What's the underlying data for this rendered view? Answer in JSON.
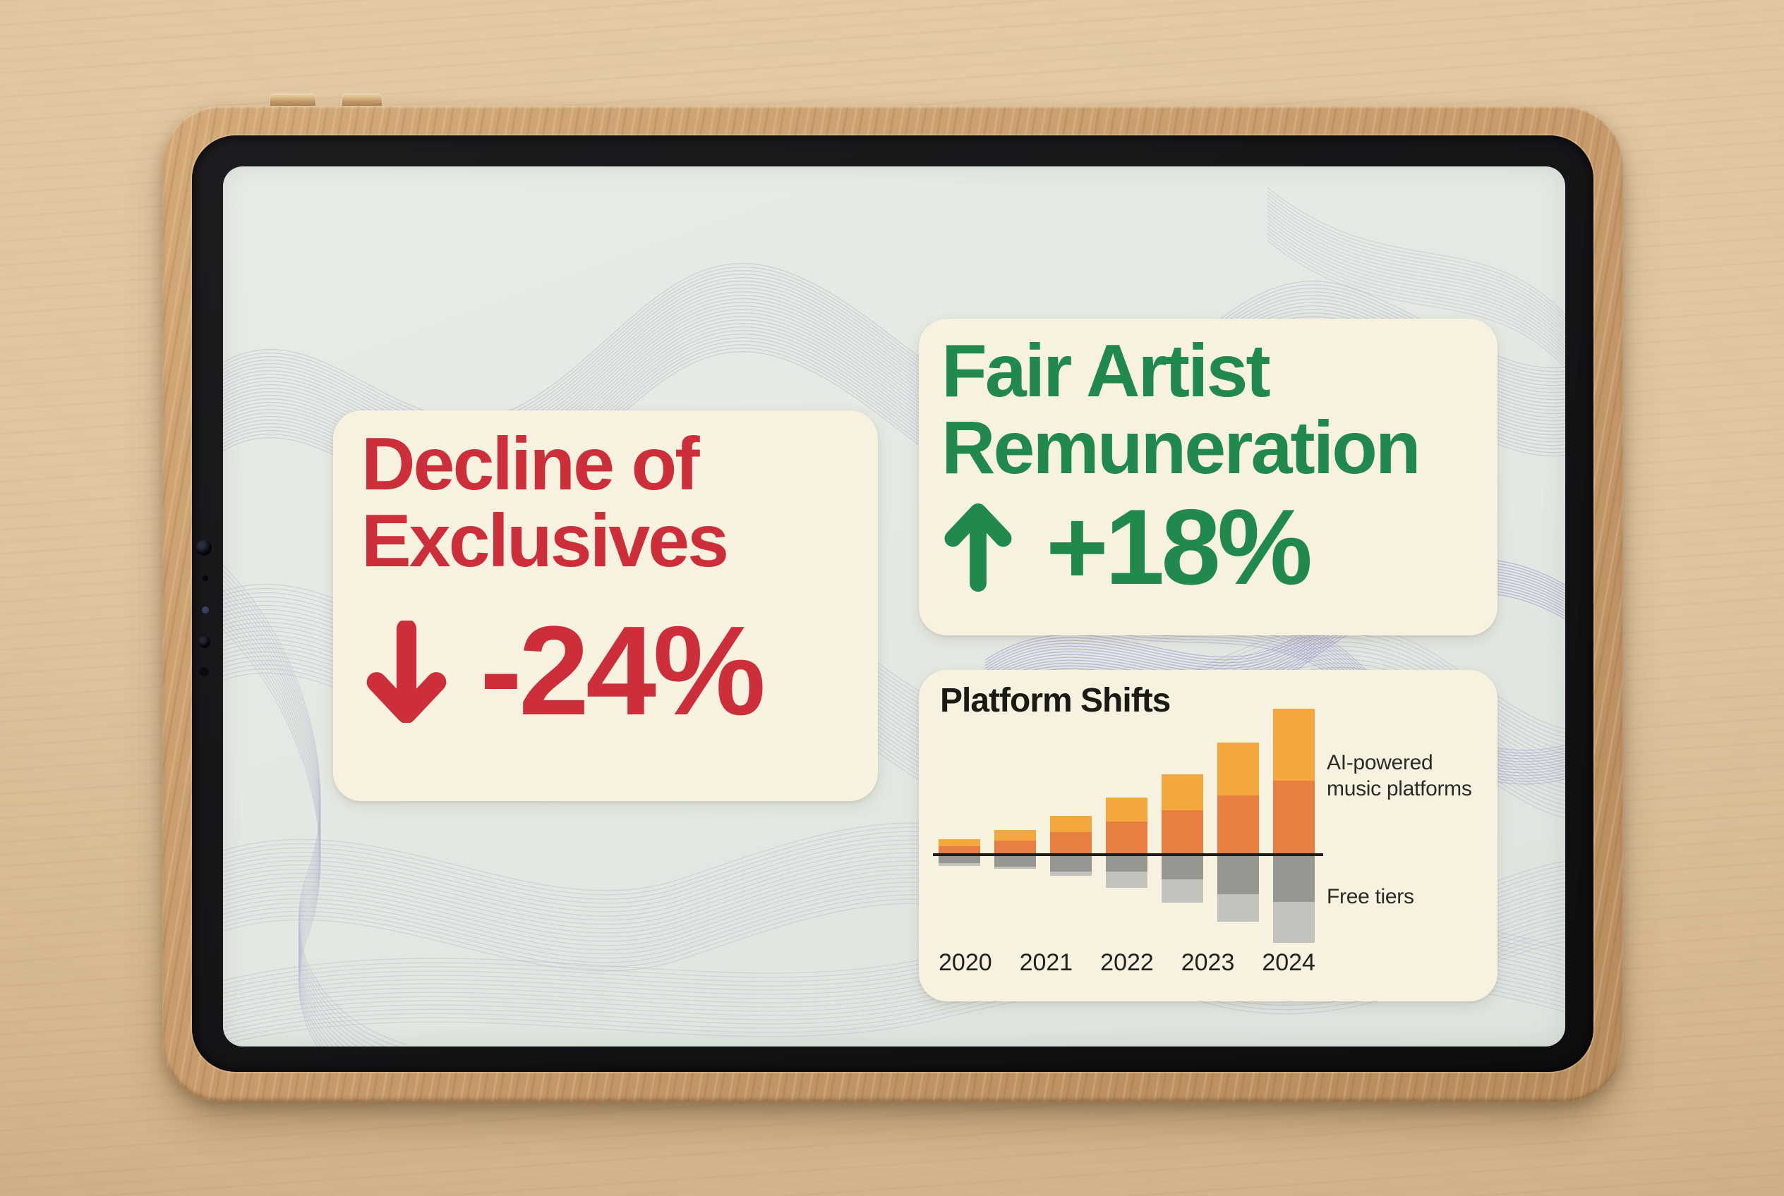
{
  "theme": {
    "desk_wood": "#DCC09A",
    "tablet_frame_wood": "#C89C6C",
    "bezel_black": "#141417",
    "screen_bg": "#E4E9E3",
    "card_bg": "#F7F2DF",
    "accent_red": "#CC2F3A",
    "accent_green": "#21894E",
    "wave_line": "#8E8BB8",
    "wave_accent": "#8476C6",
    "chart_text": "#1B1B15"
  },
  "icons": {
    "decline_arrow": "down-arrow-icon",
    "growth_arrow": "up-arrow-icon",
    "camera": "front-camera-dots"
  },
  "cards": {
    "decline": {
      "title_line1": "Decline of",
      "title_line2": "Exclusives",
      "stat": "-24%"
    },
    "remuneration": {
      "title_line1": "Fair Artist",
      "title_line2": "Remuneration",
      "stat": "+18%"
    }
  },
  "chart_data": {
    "type": "bar",
    "variant": "diverging-stacked",
    "title": "Platform Shifts",
    "x_tick_labels": [
      "2020",
      "2021",
      "2022",
      "2023",
      "2024"
    ],
    "bars_drawn": 7,
    "axis_note": "no numeric axis shown; values are relative heights read from pixels; black zero baseline; bars grow yearly above and below the line",
    "legend_position": "right",
    "legend": [
      {
        "label_line1": "AI-powered",
        "label_line2": "music platforms",
        "side": "above-baseline",
        "colors": [
          "#F3A83D",
          "#E87E41"
        ]
      },
      {
        "label_line1": "Free tiers",
        "label_line2": "",
        "side": "below-baseline",
        "colors": [
          "#979792",
          "#C2C1BC"
        ]
      }
    ],
    "series": [
      {
        "name": "AI-powered music platforms (upper amber segment)",
        "color": "#F3A83D",
        "direction": "up",
        "values": [
          10,
          15,
          23,
          34,
          51,
          75,
          102
        ]
      },
      {
        "name": "AI-powered music platforms (lower orange segment)",
        "color": "#E87E41",
        "direction": "up",
        "values": [
          10,
          18,
          30,
          45,
          61,
          82,
          103
        ]
      },
      {
        "name": "Free tiers (dark grey segment)",
        "color": "#979792",
        "direction": "down",
        "values": [
          10,
          15,
          22,
          22,
          33,
          54,
          65
        ]
      },
      {
        "name": "Free tiers (light grey segment)",
        "color": "#C2C1BC",
        "direction": "down",
        "values": [
          4,
          3,
          6,
          23,
          33,
          39,
          58
        ]
      }
    ]
  }
}
